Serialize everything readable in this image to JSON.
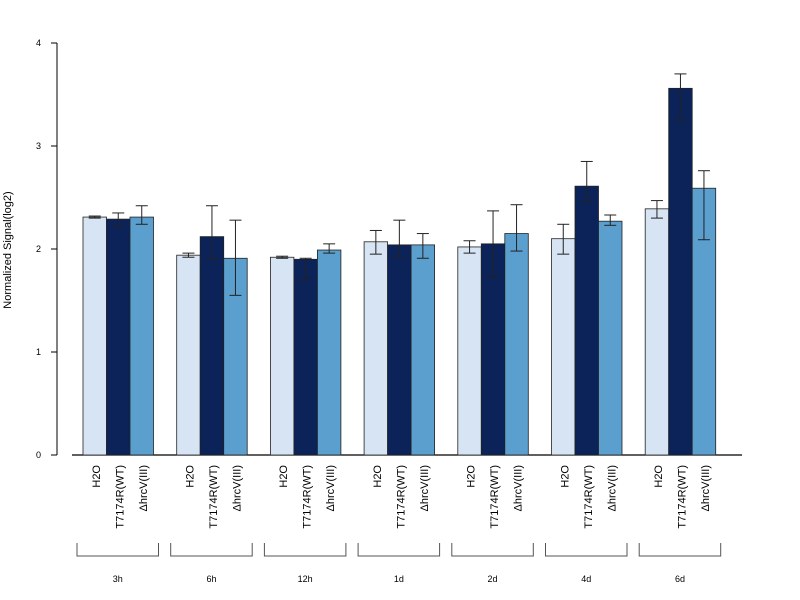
{
  "chart_data": {
    "type": "bar",
    "title": "",
    "xlabel": "",
    "ylabel": "Normalized Signal(log2)",
    "ylim": [
      0,
      4
    ],
    "yticks": [
      "0",
      "1",
      "2",
      "3",
      "4"
    ],
    "grid": false,
    "legend": "none",
    "groups": [
      "3h",
      "6h",
      "12h",
      "1d",
      "2d",
      "4d",
      "6d"
    ],
    "bar_labels": [
      "H2O",
      "T7174R(WT)",
      "ΔhrcV(III)"
    ],
    "colors": [
      "#d6e4f3",
      "#0b2358",
      "#5a9fce"
    ],
    "series": [
      {
        "values": [
          2.31,
          1.94,
          1.92,
          2.07,
          2.02,
          2.1,
          2.39
        ],
        "error_low": [
          2.3,
          1.92,
          1.91,
          1.95,
          1.96,
          1.95,
          2.3
        ],
        "error_high": [
          2.32,
          1.96,
          1.93,
          2.18,
          2.08,
          2.24,
          2.47
        ]
      },
      {
        "values": [
          2.29,
          2.12,
          1.9,
          2.04,
          2.05,
          2.61,
          3.56
        ],
        "error_low": [
          2.22,
          1.9,
          1.71,
          1.93,
          1.73,
          2.47,
          3.25
        ],
        "error_high": [
          2.35,
          2.42,
          1.91,
          2.28,
          2.37,
          2.85,
          3.7
        ]
      },
      {
        "values": [
          2.31,
          1.91,
          1.99,
          2.04,
          2.15,
          2.27,
          2.59
        ],
        "error_low": [
          2.24,
          1.55,
          1.96,
          1.91,
          1.98,
          2.23,
          2.09
        ],
        "error_high": [
          2.42,
          2.28,
          2.05,
          2.15,
          2.43,
          2.33,
          2.76
        ]
      }
    ]
  }
}
